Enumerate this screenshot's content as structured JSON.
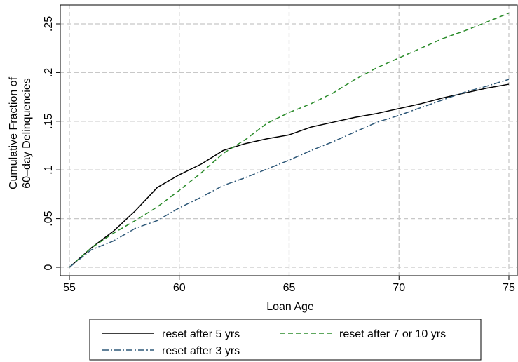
{
  "chart_data": {
    "type": "line",
    "xlabel": "Loan Age",
    "ylabel_lines": [
      "Cumulative Fraction of",
      "60–day Delinquencies"
    ],
    "xlim": [
      55,
      75
    ],
    "ylim": [
      0,
      0.26
    ],
    "xticks": [
      55,
      60,
      65,
      70,
      75
    ],
    "xtick_labels": [
      "55",
      "60",
      "65",
      "70",
      "75"
    ],
    "yticks": [
      0,
      0.05,
      0.1,
      0.15,
      0.2,
      0.25
    ],
    "ytick_labels": [
      "0",
      ".05",
      ".1",
      ".15",
      ".2",
      ".25"
    ],
    "grid": true,
    "legend_position": "bottom",
    "x": [
      55,
      56,
      57,
      58,
      59,
      60,
      61,
      62,
      63,
      64,
      65,
      66,
      67,
      68,
      69,
      70,
      71,
      72,
      73,
      74,
      75
    ],
    "series": [
      {
        "name": "reset after 5 yrs",
        "color": "#000000",
        "dash": "solid",
        "values": [
          0,
          0.02,
          0.037,
          0.058,
          0.082,
          0.095,
          0.106,
          0.12,
          0.127,
          0.132,
          0.136,
          0.144,
          0.149,
          0.154,
          0.158,
          0.163,
          0.168,
          0.174,
          0.179,
          0.184,
          0.188
        ]
      },
      {
        "name": "reset after 7 or 10 yrs",
        "color": "#2a8b2a",
        "dash": "dashed",
        "values": [
          0,
          0.02,
          0.035,
          0.048,
          0.062,
          0.079,
          0.097,
          0.117,
          0.131,
          0.148,
          0.159,
          0.168,
          0.179,
          0.193,
          0.205,
          0.215,
          0.225,
          0.235,
          0.243,
          0.252,
          0.261
        ]
      },
      {
        "name": "reset after 3 yrs",
        "color": "#2e5878",
        "dash": "dashdot",
        "values": [
          0,
          0.018,
          0.027,
          0.04,
          0.048,
          0.061,
          0.072,
          0.084,
          0.092,
          0.101,
          0.11,
          0.12,
          0.129,
          0.139,
          0.149,
          0.156,
          0.164,
          0.172,
          0.18,
          0.186,
          0.193
        ]
      }
    ]
  }
}
